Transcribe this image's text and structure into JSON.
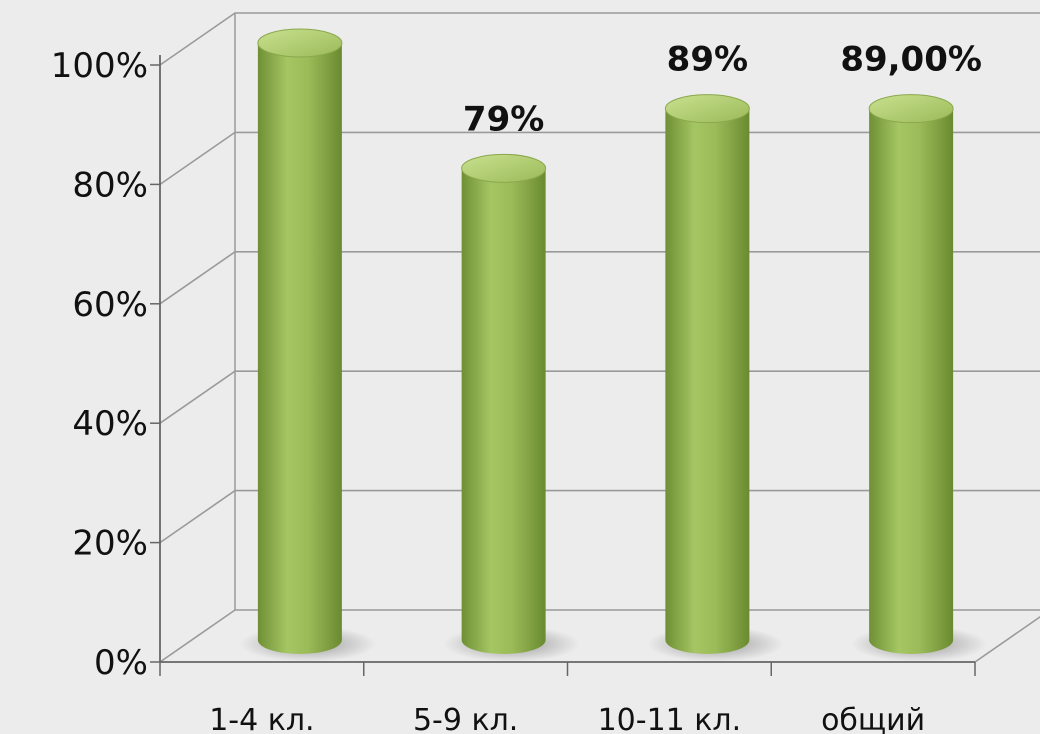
{
  "chart_data": {
    "type": "bar",
    "style": "3d-cylinder",
    "categories": [
      "1-4 кл.",
      "5-9 кл.",
      "10-11 кл.",
      "общий"
    ],
    "values": [
      100,
      79,
      89,
      89
    ],
    "data_labels": [
      "",
      "79%",
      "89%",
      "89,00%"
    ],
    "ylim": [
      0,
      100
    ],
    "y_ticks": [
      "0%",
      "20%",
      "40%",
      "60%",
      "80%",
      "100%"
    ],
    "grid": true,
    "colors": {
      "bar": "#9bbb59",
      "bar_dark": "#6f8f35",
      "bar_light": "#c3dc8a",
      "grid": "#9a9a9a",
      "background": "#ececec"
    }
  }
}
